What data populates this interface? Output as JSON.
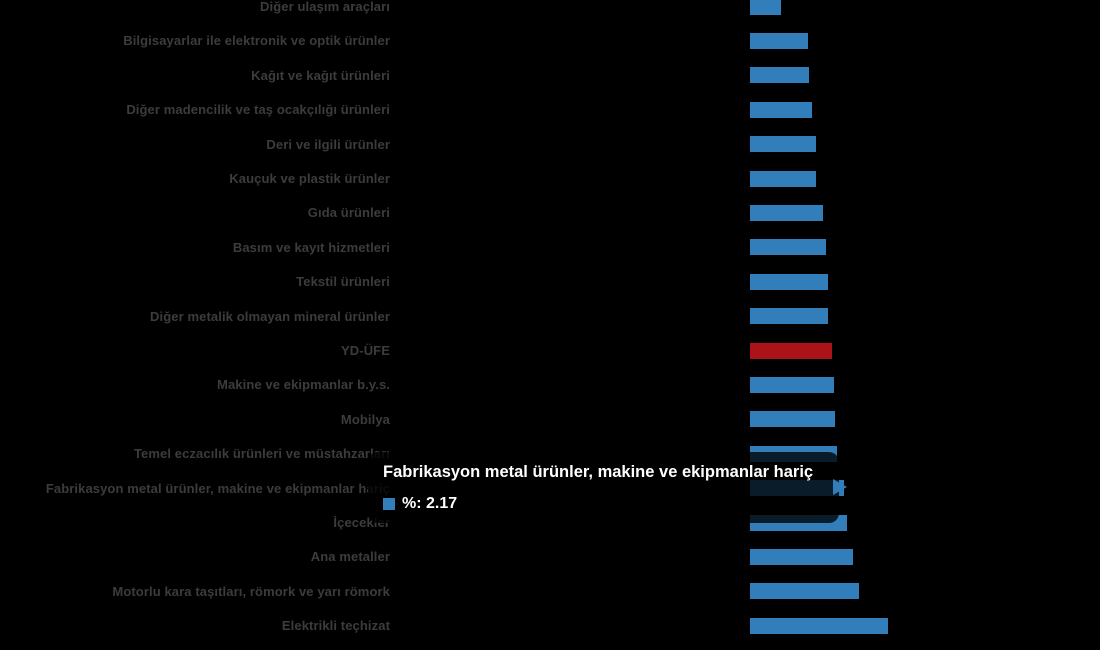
{
  "background_color": "#000000",
  "chart_data": {
    "type": "bar",
    "orientation": "horizontal",
    "title": "",
    "xlabel": "",
    "ylabel": "",
    "legend": "none",
    "grid": "off",
    "series_name": "%",
    "categories": [
      "Diğer ulaşım araçları",
      "Bilgisayarlar ile elektronik ve optik ürünler",
      "Kağıt ve kağıt ürünleri",
      "Diğer madencilik ve taş ocakçılığı ürünleri",
      "Deri ve ilgili ürünler",
      "Kauçuk ve plastik ürünler",
      "Gıda ürünleri",
      "Basım ve kayıt hizmetleri",
      "Tekstil ürünleri",
      "Diğer metalik olmayan mineral ürünler",
      "YD-ÜFE",
      "Makine ve ekipmanlar b.y.s.",
      "Mobilya",
      "Temel eczacılık ürünleri ve müstahzarları",
      "Fabrikasyon metal ürünler, makine ve ekipmanlar hariç",
      "İçecekler",
      "Ana metaller",
      "Motorlu kara taşıtları, römork ve yarı römork",
      "Elektrikli teçhizat"
    ],
    "values": [
      0.72,
      1.34,
      1.36,
      1.43,
      1.52,
      1.52,
      1.69,
      1.76,
      1.8,
      1.8,
      1.9,
      1.94,
      1.96,
      2.01,
      2.17,
      2.24,
      2.38,
      2.52,
      3.19
    ],
    "labeled_value": {
      "category": "Fabrikasyon metal ürünler, makine ve ekipmanlar hariç",
      "value": 2.17
    },
    "highlighted_red_category": "YD-ÜFE",
    "hovered_category": "Fabrikasyon metal ürünler, makine ve ekipmanlar hariç",
    "xlim": [
      0,
      3.5
    ],
    "colors": {
      "bar": "#317EBB",
      "bar_red": "#AC1318",
      "category_label_text": "#3C3C3C"
    }
  },
  "tooltip": {
    "title": "Fabrikasyon metal ürünler, makine ve ekipmanlar hariç",
    "value_label": "%: 2.17",
    "marker_color": "#317EBB",
    "background": "rgba(0,0,0,0.78)",
    "text_color": "#FFFFFF"
  }
}
